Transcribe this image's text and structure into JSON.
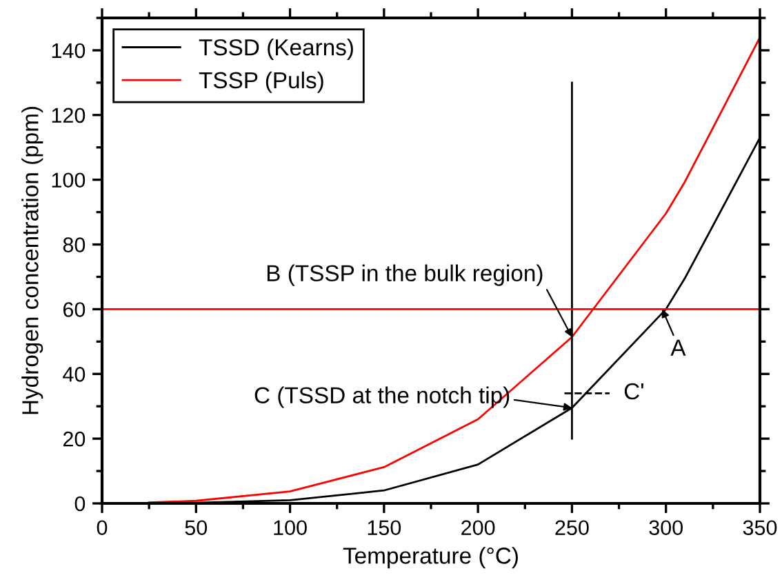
{
  "chart_data": {
    "type": "line",
    "xlabel": "Temperature (°C)",
    "ylabel": "Hydrogen concentration (ppm)",
    "xlim": [
      0,
      350
    ],
    "ylim": [
      0,
      150
    ],
    "xticks": [
      0,
      50,
      100,
      150,
      200,
      250,
      300,
      350
    ],
    "yticks": [
      0,
      20,
      40,
      60,
      80,
      100,
      120,
      140
    ],
    "legend": "top left",
    "grid": false,
    "marker": "none",
    "line_style": "solid",
    "series": [
      {
        "name": "TSSD (Kearns)",
        "color": "#000000",
        "x": [
          25,
          50,
          100,
          150,
          200,
          250,
          300,
          310,
          350
        ],
        "values": [
          0,
          0.2,
          1,
          4,
          12,
          29.5,
          60,
          69.5,
          113
        ]
      },
      {
        "name": "TSSP (Puls)",
        "color": "#ff0000",
        "x": [
          25,
          50,
          100,
          150,
          200,
          250,
          300,
          310,
          350
        ],
        "values": [
          0.3,
          0.8,
          3.7,
          11.2,
          26,
          51.4,
          89.6,
          99.3,
          144
        ]
      },
      {
        "color": "#000000",
        "x": [
          250,
          250
        ],
        "values": [
          20,
          130
        ]
      },
      {
        "color": "#000000",
        "x": [
          246,
          270
        ],
        "values": [
          34,
          34
        ],
        "line_style": "dashed"
      }
    ],
    "ref_lines": [
      {
        "axis": "y",
        "value": 60,
        "color": "#ff0000"
      }
    ],
    "annotations": [
      {
        "text": "B (TSSP in the bulk region)",
        "x": 250,
        "y": 51.4
      },
      {
        "text": "C (TSSD at the notch tip)",
        "x": 250,
        "y": 29.5
      },
      {
        "text": "A",
        "x": 298,
        "y": 60
      },
      {
        "text": "C'",
        "x": 270,
        "y": 34
      }
    ]
  }
}
